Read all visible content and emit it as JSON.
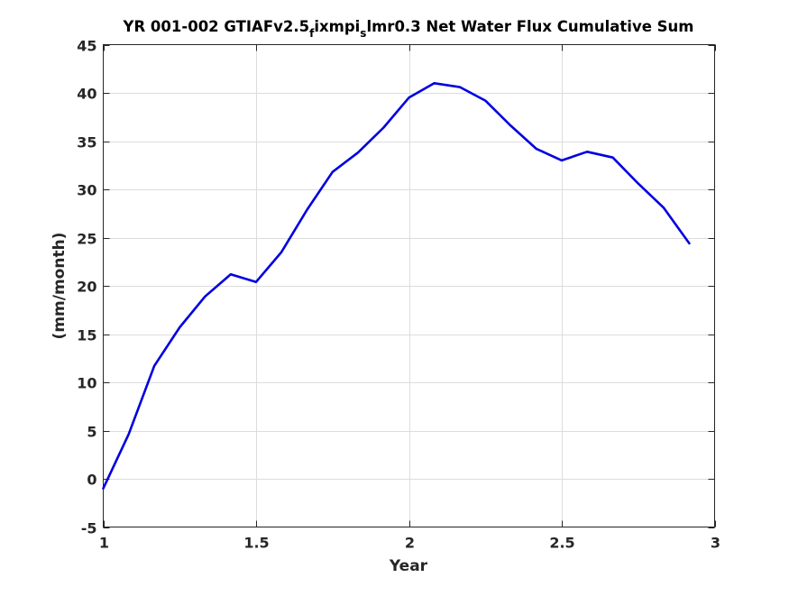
{
  "chart_data": {
    "type": "line",
    "title": {
      "part1": "YR 001-002 GTIAFv2.5",
      "sub1": "f",
      "part2": "ixmpi",
      "sub2": "s",
      "part3": "lmr0.3 Net Water Flux Cumulative Sum"
    },
    "xlabel": "Year",
    "ylabel": "(mm/month)",
    "xlim": [
      1,
      3
    ],
    "ylim": [
      -5,
      45
    ],
    "xticks": [
      1,
      1.5,
      2,
      2.5,
      3
    ],
    "xtick_labels": [
      "1",
      "1.5",
      "2",
      "2.5",
      "3"
    ],
    "yticks": [
      -5,
      0,
      5,
      10,
      15,
      20,
      25,
      30,
      35,
      40,
      45
    ],
    "ytick_labels": [
      "-5",
      "0",
      "5",
      "10",
      "15",
      "20",
      "25",
      "30",
      "35",
      "40",
      "45"
    ],
    "grid": true,
    "series": [
      {
        "color": "#0000e0",
        "x": [
          1.0,
          1.083,
          1.167,
          1.25,
          1.333,
          1.417,
          1.5,
          1.583,
          1.667,
          1.75,
          1.833,
          1.917,
          2.0,
          2.083,
          2.167,
          2.25,
          2.333,
          2.417,
          2.5,
          2.583,
          2.667,
          2.75,
          2.833,
          2.917
        ],
        "y": [
          -1.0,
          4.6,
          11.7,
          15.7,
          18.9,
          21.2,
          20.4,
          23.5,
          27.9,
          31.8,
          33.8,
          36.4,
          39.5,
          41.0,
          40.6,
          39.2,
          36.6,
          34.2,
          33.0,
          33.9,
          33.3,
          30.6,
          28.1,
          24.4
        ]
      }
    ]
  }
}
